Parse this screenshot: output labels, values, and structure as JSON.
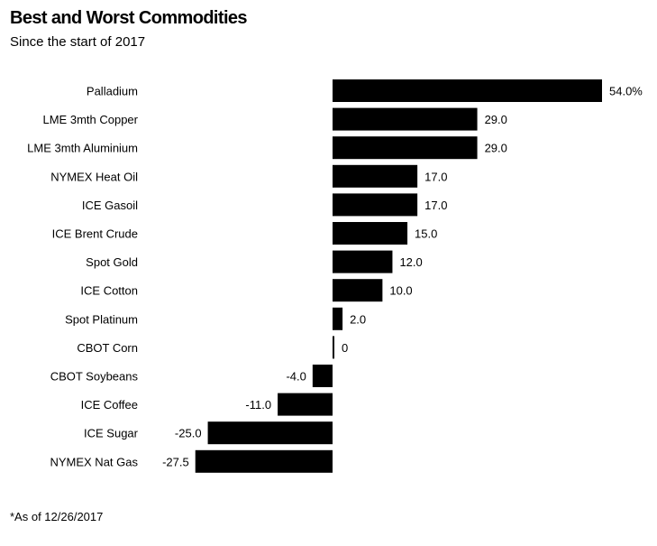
{
  "chart_data": {
    "type": "bar",
    "orientation": "horizontal",
    "title": "Best and Worst Commodities",
    "subtitle": "Since the start of 2017",
    "footnote": "*As of 12/26/2017",
    "unit_suffix": "%",
    "categories": [
      "Palladium",
      "LME 3mth Copper",
      "LME 3mth Aluminium",
      "NYMEX Heat Oil",
      "ICE Gasoil",
      "ICE Brent Crude",
      "Spot Gold",
      "ICE Cotton",
      "Spot Platinum",
      "CBOT Corn",
      "CBOT Soybeans",
      "ICE Coffee",
      "ICE Sugar",
      "NYMEX Nat Gas"
    ],
    "values": [
      54.0,
      29.0,
      29.0,
      17.0,
      17.0,
      15.0,
      12.0,
      10.0,
      2.0,
      0,
      -4.0,
      -11.0,
      -25.0,
      -27.5
    ],
    "value_labels": [
      "54.0%",
      "29.0",
      "29.0",
      "17.0",
      "17.0",
      "15.0",
      "12.0",
      "10.0",
      "2.0",
      "0",
      "-4.0",
      "-11.0",
      "-25.0",
      "-27.5"
    ],
    "xlim": [
      -27.5,
      54.0
    ],
    "bar_color": "#000000"
  }
}
